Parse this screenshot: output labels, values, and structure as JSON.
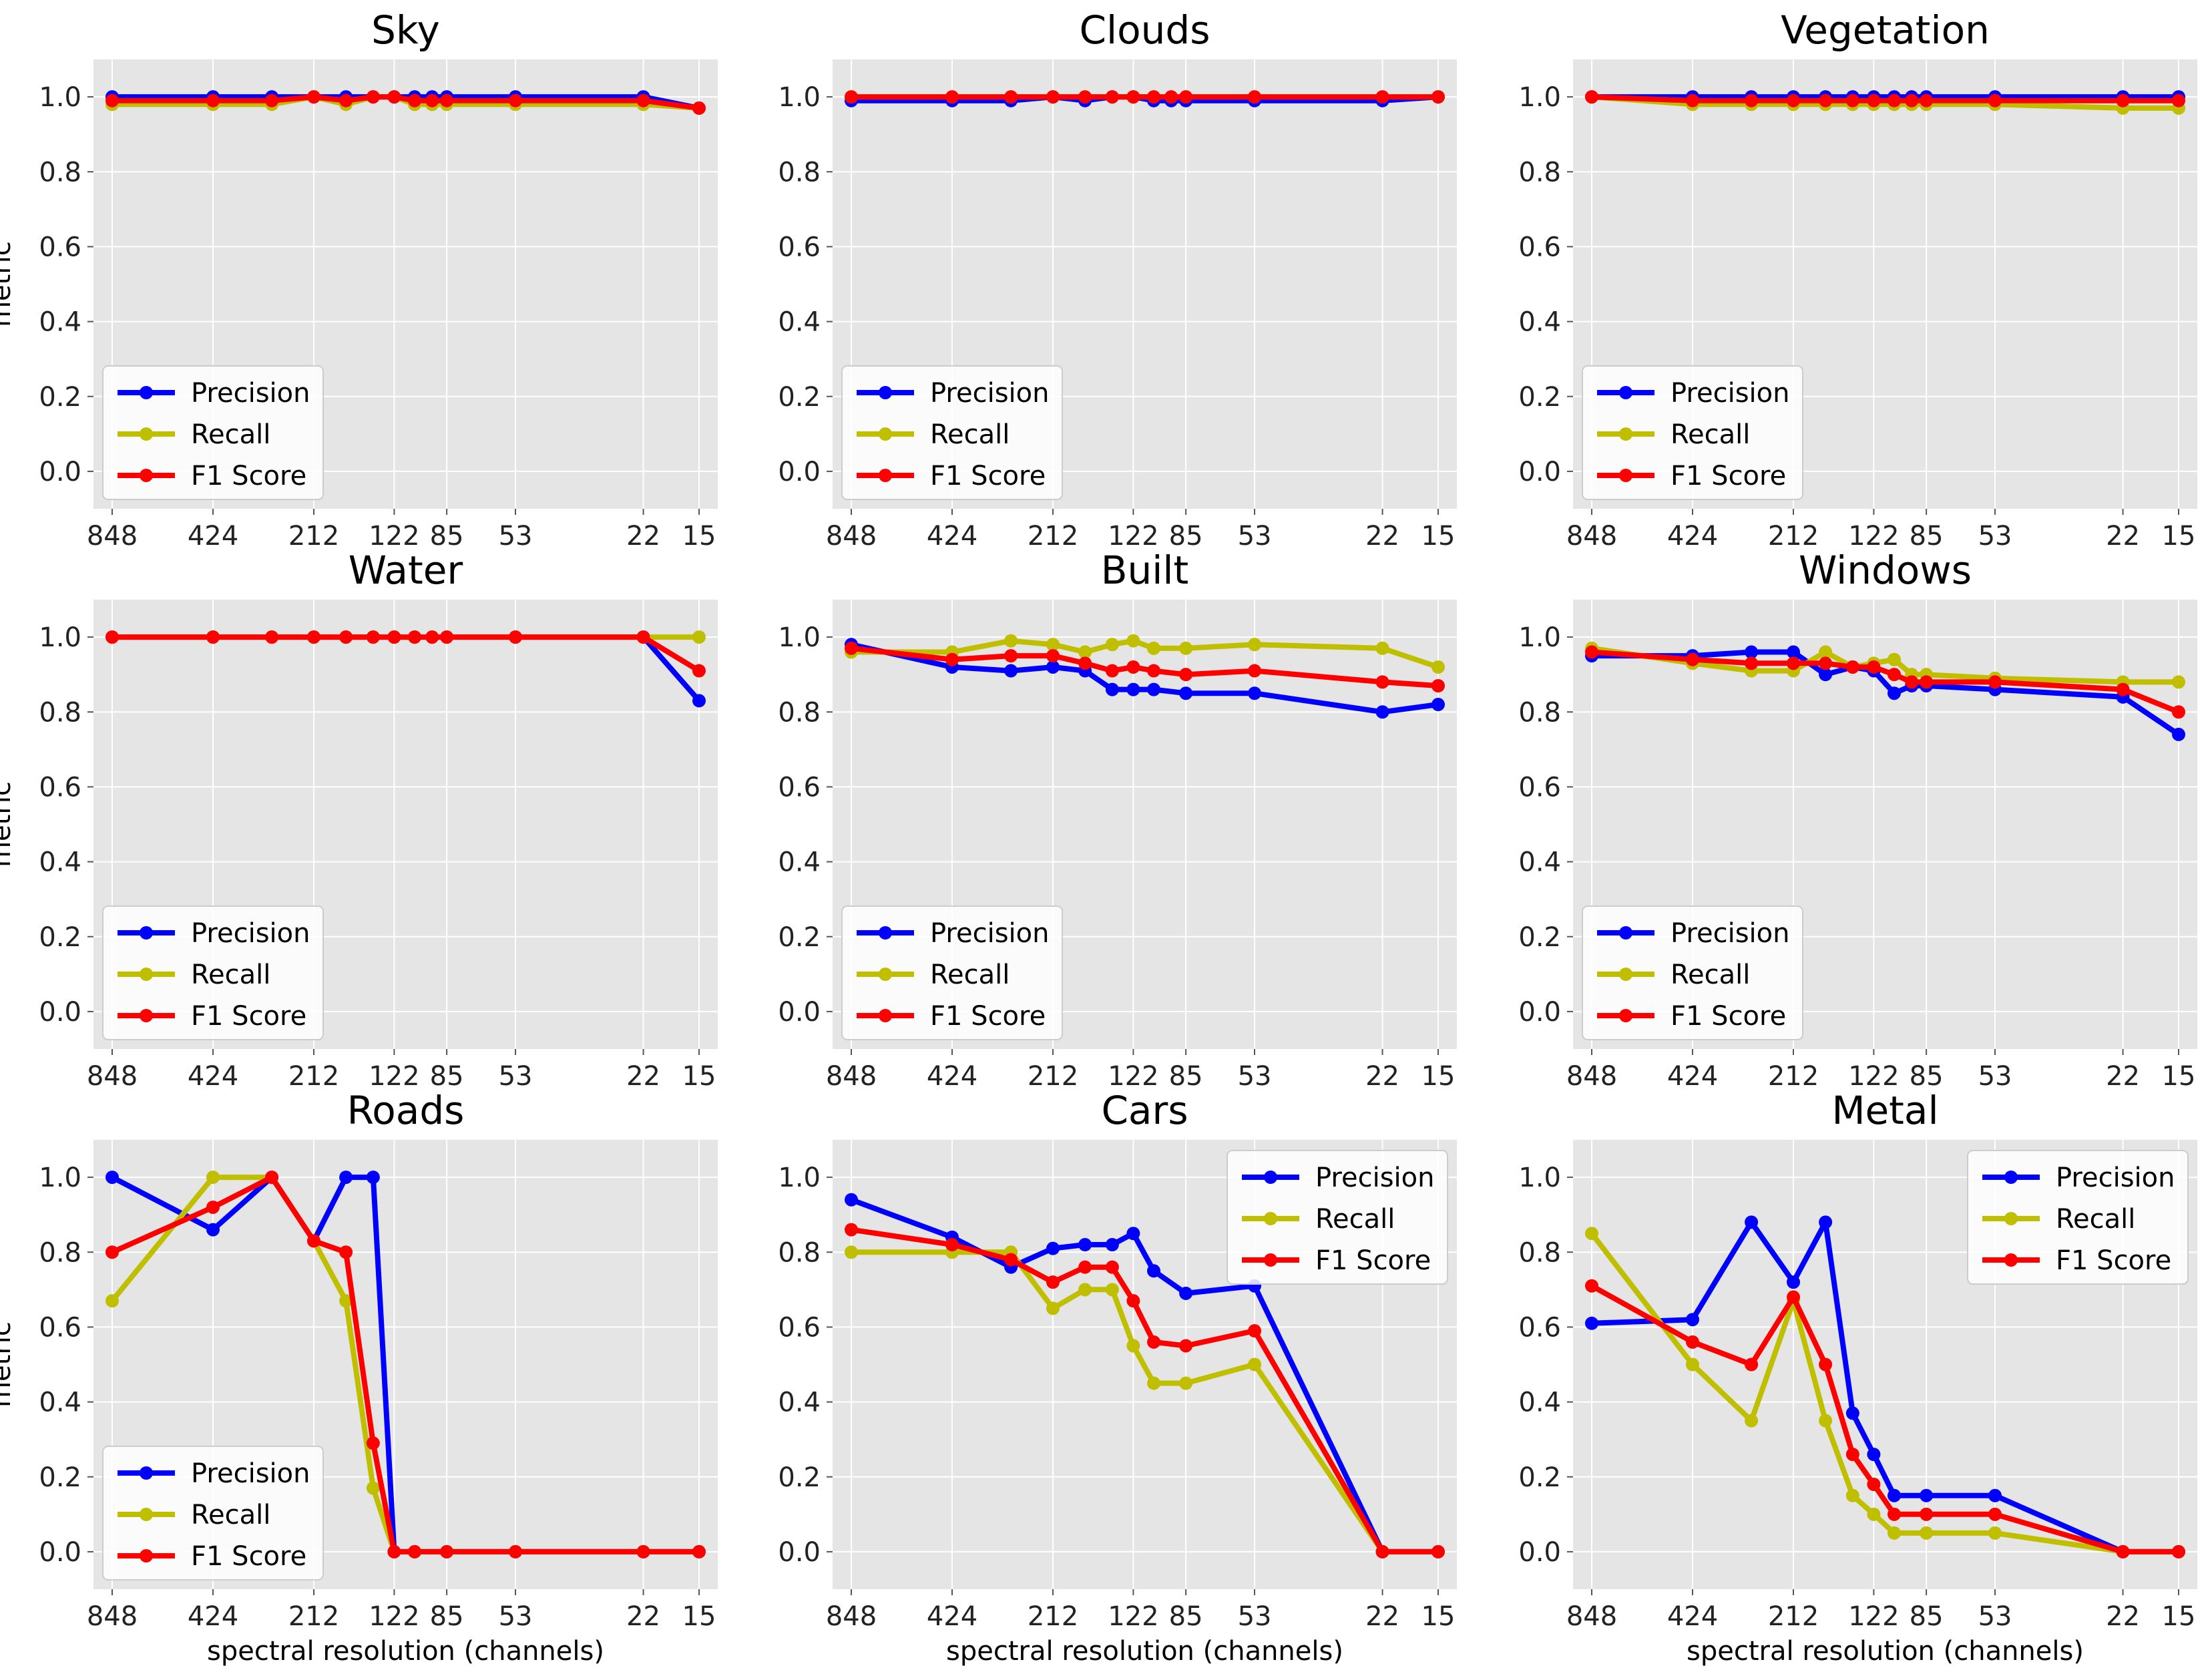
{
  "chart_data": {
    "type": "line",
    "layout": "3x3 grid",
    "x_scale": "log",
    "x": [
      848,
      424,
      283,
      212,
      170,
      141,
      122,
      106,
      94,
      85,
      53,
      22,
      15
    ],
    "x_tick_labels": [
      "848",
      "424",
      "212",
      "122",
      "85",
      "53",
      "22",
      "15"
    ],
    "y_ticks": [
      "0.0",
      "0.2",
      "0.4",
      "0.6",
      "0.8",
      "1.0"
    ],
    "ylim": [
      -0.1,
      1.1
    ],
    "ylabel": "metric",
    "xlabel": "spectral resolution (channels)",
    "series_names": [
      "Precision",
      "Recall",
      "F1 Score"
    ],
    "series_colors": [
      "#0000ff",
      "#bfbf00",
      "#ff0000"
    ],
    "panels": [
      {
        "title": "Sky",
        "legend": "lower-left",
        "xs": [
          848,
          424,
          283,
          212,
          170,
          141,
          122,
          106,
          94,
          85,
          53,
          22,
          15
        ],
        "series": [
          {
            "name": "Precision",
            "values": [
              1.0,
              1.0,
              1.0,
              1.0,
              1.0,
              1.0,
              1.0,
              1.0,
              1.0,
              1.0,
              1.0,
              1.0,
              0.97
            ]
          },
          {
            "name": "Recall",
            "values": [
              0.98,
              0.98,
              0.98,
              1.0,
              0.98,
              1.0,
              1.0,
              0.98,
              0.98,
              0.98,
              0.98,
              0.98,
              0.97
            ]
          },
          {
            "name": "F1 Score",
            "values": [
              0.99,
              0.99,
              0.99,
              1.0,
              0.99,
              1.0,
              1.0,
              0.99,
              0.99,
              0.99,
              0.99,
              0.99,
              0.97
            ]
          }
        ]
      },
      {
        "title": "Clouds",
        "legend": "lower-left",
        "xs": [
          848,
          424,
          283,
          212,
          170,
          141,
          122,
          106,
          94,
          85,
          53,
          22,
          15
        ],
        "series": [
          {
            "name": "Precision",
            "values": [
              0.99,
              0.99,
              0.99,
              1.0,
              0.99,
              1.0,
              1.0,
              0.99,
              0.99,
              0.99,
              0.99,
              0.99,
              1.0
            ]
          },
          {
            "name": "Recall",
            "values": [
              1.0,
              1.0,
              1.0,
              1.0,
              1.0,
              1.0,
              1.0,
              1.0,
              1.0,
              1.0,
              1.0,
              1.0,
              1.0
            ]
          },
          {
            "name": "F1 Score",
            "values": [
              1.0,
              1.0,
              1.0,
              1.0,
              1.0,
              1.0,
              1.0,
              1.0,
              1.0,
              1.0,
              1.0,
              1.0,
              1.0
            ]
          }
        ]
      },
      {
        "title": "Vegetation",
        "legend": "lower-left",
        "xs": [
          848,
          424,
          283,
          212,
          170,
          141,
          122,
          106,
          94,
          85,
          53,
          22,
          15
        ],
        "series": [
          {
            "name": "Precision",
            "values": [
              1.0,
              1.0,
              1.0,
              1.0,
              1.0,
              1.0,
              1.0,
              1.0,
              1.0,
              1.0,
              1.0,
              1.0,
              1.0
            ]
          },
          {
            "name": "Recall",
            "values": [
              1.0,
              0.98,
              0.98,
              0.98,
              0.98,
              0.98,
              0.98,
              0.98,
              0.98,
              0.98,
              0.98,
              0.97,
              0.97
            ]
          },
          {
            "name": "F1 Score",
            "values": [
              1.0,
              0.99,
              0.99,
              0.99,
              0.99,
              0.99,
              0.99,
              0.99,
              0.99,
              0.99,
              0.99,
              0.99,
              0.99
            ]
          }
        ]
      },
      {
        "title": "Water",
        "legend": "lower-left",
        "xs": [
          848,
          424,
          283,
          212,
          170,
          141,
          122,
          106,
          94,
          85,
          53,
          22,
          15
        ],
        "series": [
          {
            "name": "Precision",
            "values": [
              1.0,
              1.0,
              1.0,
              1.0,
              1.0,
              1.0,
              1.0,
              1.0,
              1.0,
              1.0,
              1.0,
              1.0,
              0.83
            ]
          },
          {
            "name": "Recall",
            "values": [
              1.0,
              1.0,
              1.0,
              1.0,
              1.0,
              1.0,
              1.0,
              1.0,
              1.0,
              1.0,
              1.0,
              1.0,
              1.0
            ]
          },
          {
            "name": "F1 Score",
            "values": [
              1.0,
              1.0,
              1.0,
              1.0,
              1.0,
              1.0,
              1.0,
              1.0,
              1.0,
              1.0,
              1.0,
              1.0,
              0.91
            ]
          }
        ]
      },
      {
        "title": "Built",
        "legend": "lower-left",
        "xs": [
          848,
          424,
          283,
          212,
          170,
          141,
          122,
          106,
          85,
          53,
          22,
          15
        ],
        "series": [
          {
            "name": "Precision",
            "values": [
              0.98,
              0.92,
              0.91,
              0.92,
              0.91,
              0.86,
              0.86,
              0.86,
              0.85,
              0.85,
              0.8,
              0.82
            ]
          },
          {
            "name": "Recall",
            "values": [
              0.96,
              0.96,
              0.99,
              0.98,
              0.96,
              0.98,
              0.99,
              0.97,
              0.97,
              0.98,
              0.97,
              0.92
            ]
          },
          {
            "name": "F1 Score",
            "values": [
              0.97,
              0.94,
              0.95,
              0.95,
              0.93,
              0.91,
              0.92,
              0.91,
              0.9,
              0.91,
              0.88,
              0.87
            ]
          }
        ]
      },
      {
        "title": "Windows",
        "legend": "lower-left",
        "xs": [
          848,
          424,
          283,
          212,
          170,
          141,
          122,
          106,
          94,
          85,
          53,
          22,
          15
        ],
        "series": [
          {
            "name": "Precision",
            "values": [
              0.95,
              0.95,
              0.96,
              0.96,
              0.9,
              0.92,
              0.91,
              0.85,
              0.87,
              0.87,
              0.86,
              0.84,
              0.74
            ]
          },
          {
            "name": "Recall",
            "values": [
              0.97,
              0.93,
              0.91,
              0.91,
              0.96,
              0.92,
              0.93,
              0.94,
              0.9,
              0.9,
              0.89,
              0.88,
              0.88
            ]
          },
          {
            "name": "F1 Score",
            "values": [
              0.96,
              0.94,
              0.93,
              0.93,
              0.93,
              0.92,
              0.92,
              0.9,
              0.88,
              0.88,
              0.88,
              0.86,
              0.8
            ]
          }
        ]
      },
      {
        "title": "Roads",
        "legend": "lower-left",
        "xs": [
          848,
          424,
          283,
          212,
          170,
          141,
          122,
          106,
          85,
          53,
          22,
          15
        ],
        "series": [
          {
            "name": "Precision",
            "values": [
              1.0,
              0.86,
              1.0,
              0.83,
              1.0,
              1.0,
              0.0,
              0.0,
              0.0,
              0.0,
              0.0,
              0.0
            ]
          },
          {
            "name": "Recall",
            "values": [
              0.67,
              1.0,
              1.0,
              0.83,
              0.67,
              0.17,
              0.0,
              0.0,
              0.0,
              0.0,
              0.0,
              0.0
            ]
          },
          {
            "name": "F1 Score",
            "values": [
              0.8,
              0.92,
              1.0,
              0.83,
              0.8,
              0.29,
              0.0,
              0.0,
              0.0,
              0.0,
              0.0,
              0.0
            ]
          }
        ]
      },
      {
        "title": "Cars",
        "legend": "upper-right",
        "xs": [
          848,
          424,
          283,
          212,
          170,
          141,
          122,
          106,
          85,
          53,
          22,
          15
        ],
        "series": [
          {
            "name": "Precision",
            "values": [
              0.94,
              0.84,
              0.76,
              0.81,
              0.82,
              0.82,
              0.85,
              0.75,
              0.69,
              0.71,
              0.0,
              0.0
            ]
          },
          {
            "name": "Recall",
            "values": [
              0.8,
              0.8,
              0.8,
              0.65,
              0.7,
              0.7,
              0.55,
              0.45,
              0.45,
              0.5,
              0.0,
              0.0
            ]
          },
          {
            "name": "F1 Score",
            "values": [
              0.86,
              0.82,
              0.78,
              0.72,
              0.76,
              0.76,
              0.67,
              0.56,
              0.55,
              0.59,
              0.0,
              0.0
            ]
          }
        ]
      },
      {
        "title": "Metal",
        "legend": "upper-right",
        "xs": [
          848,
          424,
          283,
          212,
          170,
          141,
          122,
          106,
          85,
          53,
          22,
          15
        ],
        "series": [
          {
            "name": "Precision",
            "values": [
              0.61,
              0.62,
              0.88,
              0.72,
              0.88,
              0.37,
              0.26,
              0.15,
              0.15,
              0.15,
              0.0,
              0.0
            ]
          },
          {
            "name": "Recall",
            "values": [
              0.85,
              0.5,
              0.35,
              0.67,
              0.35,
              0.15,
              0.1,
              0.05,
              0.05,
              0.05,
              0.0,
              0.0
            ]
          },
          {
            "name": "F1 Score",
            "values": [
              0.71,
              0.56,
              0.5,
              0.68,
              0.5,
              0.26,
              0.18,
              0.1,
              0.1,
              0.1,
              0.0,
              0.0
            ]
          }
        ]
      }
    ]
  }
}
